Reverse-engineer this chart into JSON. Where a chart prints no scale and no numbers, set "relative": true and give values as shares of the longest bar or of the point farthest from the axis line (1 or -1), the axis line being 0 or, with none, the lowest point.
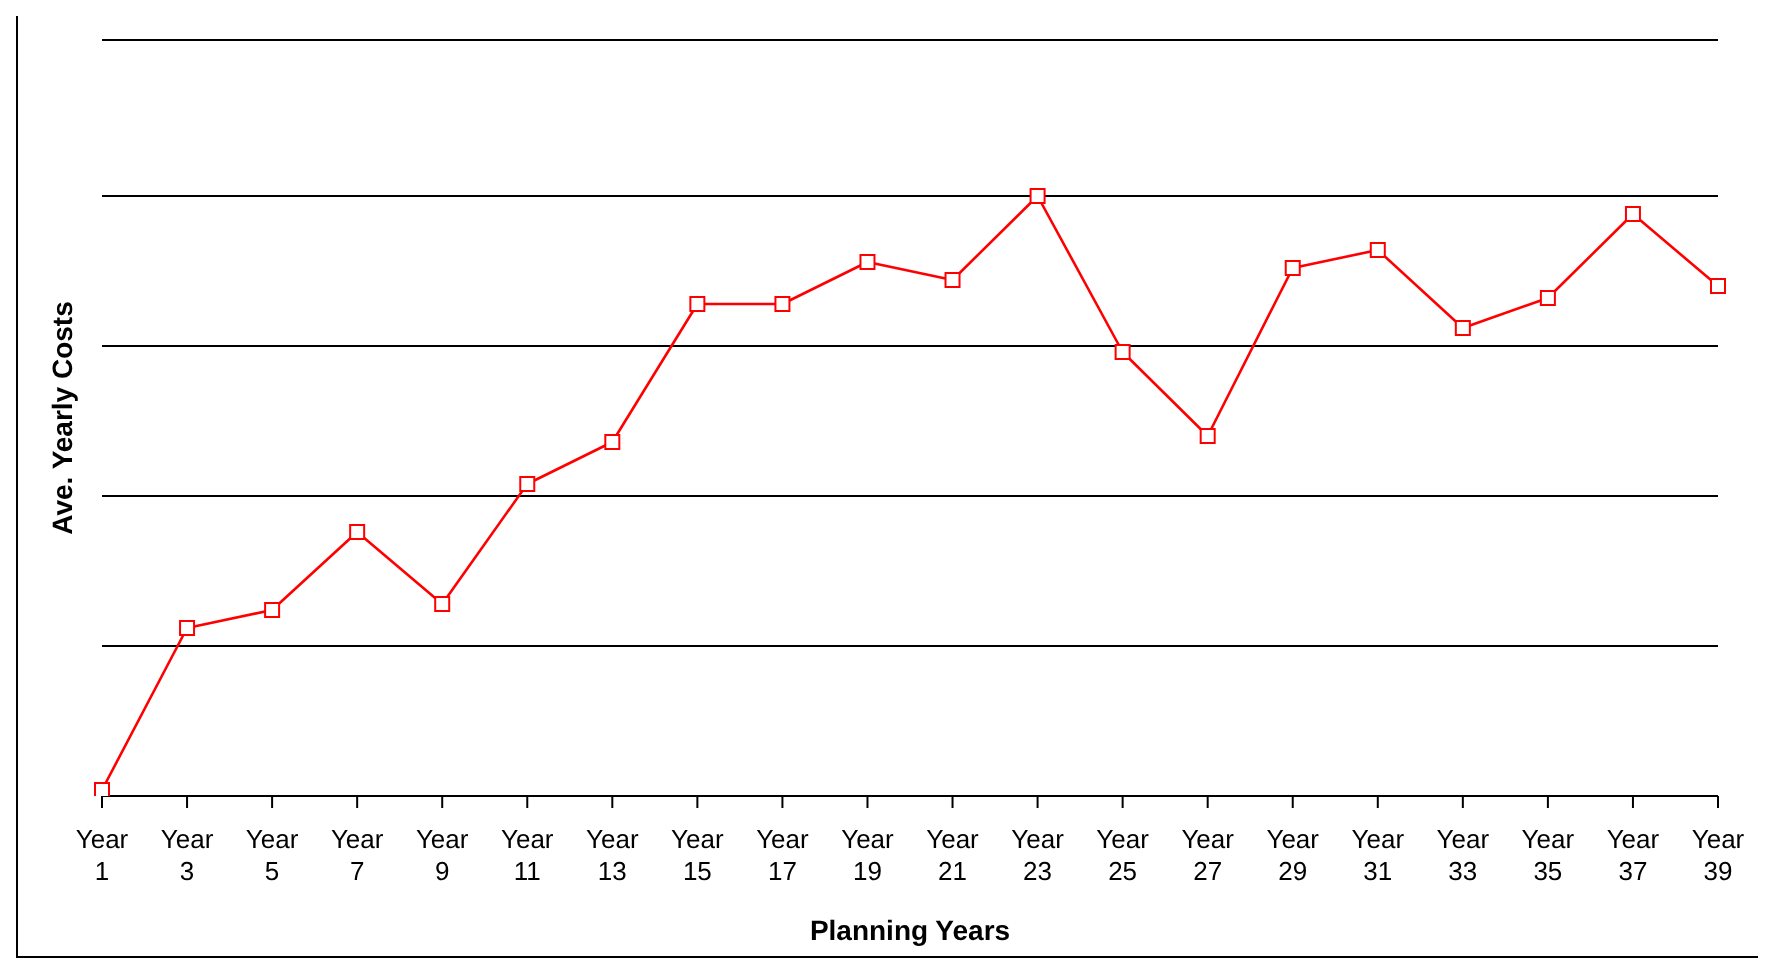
{
  "chart_data": {
    "type": "line",
    "xlabel": "Planning Years",
    "ylabel": "Ave. Yearly Costs",
    "relative": true,
    "categories": [
      "Year 1",
      "Year 3",
      "Year 5",
      "Year 7",
      "Year 9",
      "Year 11",
      "Year 13",
      "Year 15",
      "Year 17",
      "Year 19",
      "Year 21",
      "Year 23",
      "Year 25",
      "Year 27",
      "Year 29",
      "Year 31",
      "Year 33",
      "Year 35",
      "Year 37",
      "Year 39"
    ],
    "series": [
      {
        "color": "#ff0000",
        "values": [
          0.01,
          0.28,
          0.31,
          0.44,
          0.32,
          0.52,
          0.59,
          0.82,
          0.82,
          0.89,
          0.86,
          1,
          0.74,
          0.6,
          0.88,
          0.91,
          0.78,
          0.83,
          0.97,
          0.85
        ]
      }
    ],
    "grid": "y",
    "legend": false,
    "marker": "square",
    "line_style": "solid"
  }
}
